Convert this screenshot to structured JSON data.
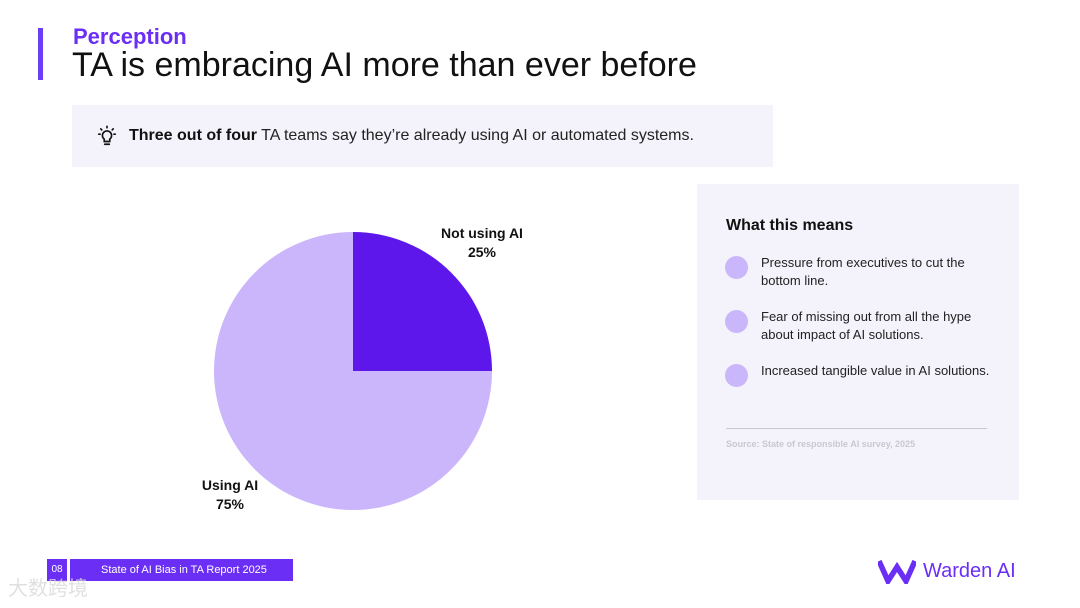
{
  "header": {
    "kicker": "Perception",
    "title": "TA is embracing AI more than ever before"
  },
  "callout": {
    "icon": "lightbulb-icon",
    "bold": "Three out of four",
    "rest": " TA teams say they’re already using AI or automated systems."
  },
  "chart_data": {
    "type": "pie",
    "title": "",
    "slices": [
      {
        "label": "Not using AI",
        "value": 25,
        "value_label": "25%",
        "color": "#5e17eb"
      },
      {
        "label": "Using AI",
        "value": 75,
        "value_label": "75%",
        "color": "#cbb6fc"
      }
    ],
    "legend": "none"
  },
  "panel": {
    "heading": "What this means",
    "items": [
      "Pressure from executives to cut the bottom line.",
      "Fear of missing out from all the hype about impact of AI solutions.",
      "Increased tangible value in AI solutions."
    ],
    "source": "Source: State of responsible AI survey, 2025"
  },
  "footer": {
    "page_number": "08",
    "report_title": "State of AI Bias in TA Report 2025"
  },
  "brand": {
    "name": "Warden AI",
    "color": "#6b2ef5"
  },
  "watermark": "大数跨境"
}
